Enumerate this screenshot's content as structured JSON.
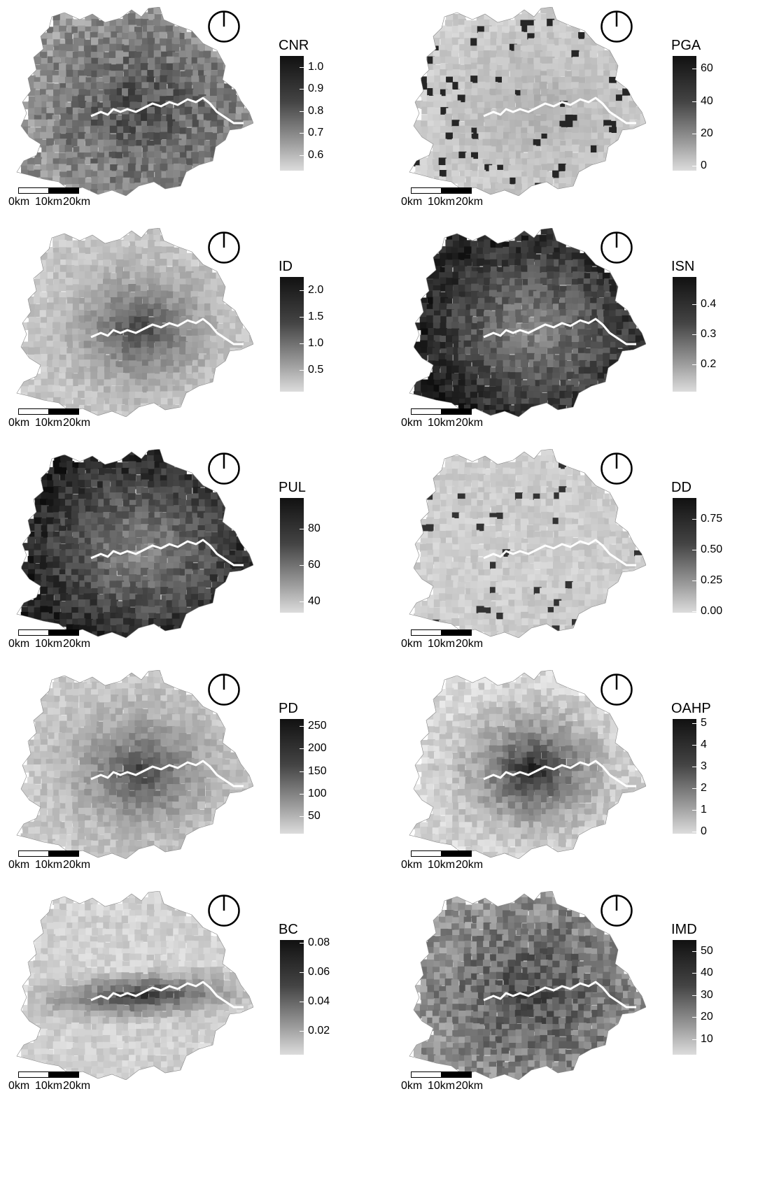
{
  "scalebar_labels": [
    "0km",
    "10km",
    "20km"
  ],
  "panels": [
    {
      "id": "cnr",
      "title": "CNR",
      "ticks": [
        "1.0",
        "0.9",
        "0.8",
        "0.7",
        "0.6"
      ],
      "pattern": "mid-dark"
    },
    {
      "id": "pga",
      "title": "PGA",
      "ticks": [
        "60",
        "40",
        "20",
        "0"
      ],
      "pattern": "light-spots"
    },
    {
      "id": "id",
      "title": "ID",
      "ticks": [
        "2.0",
        "1.5",
        "1.0",
        "0.5"
      ],
      "pattern": "light-center"
    },
    {
      "id": "isn",
      "title": "ISN",
      "ticks": [
        "0.4",
        "0.3",
        "0.2"
      ],
      "pattern": "dark-edge"
    },
    {
      "id": "pul",
      "title": "PUL",
      "ticks": [
        "80",
        "60",
        "40"
      ],
      "pattern": "dark-edge"
    },
    {
      "id": "dd",
      "title": "DD",
      "ticks": [
        "0.75",
        "0.50",
        "0.25",
        "0.00"
      ],
      "pattern": "light"
    },
    {
      "id": "pd",
      "title": "PD",
      "ticks": [
        "250",
        "200",
        "150",
        "100",
        "50"
      ],
      "pattern": "light-center"
    },
    {
      "id": "oahp",
      "title": "OAHP",
      "ticks": [
        "5",
        "4",
        "3",
        "2",
        "1",
        "0"
      ],
      "pattern": "dark-center"
    },
    {
      "id": "bc",
      "title": "BC",
      "ticks": [
        "0.08",
        "0.06",
        "0.04",
        "0.02"
      ],
      "pattern": "river"
    },
    {
      "id": "imd",
      "title": "IMD",
      "ticks": [
        "50",
        "40",
        "30",
        "20",
        "10"
      ],
      "pattern": "mid-dark"
    }
  ]
}
